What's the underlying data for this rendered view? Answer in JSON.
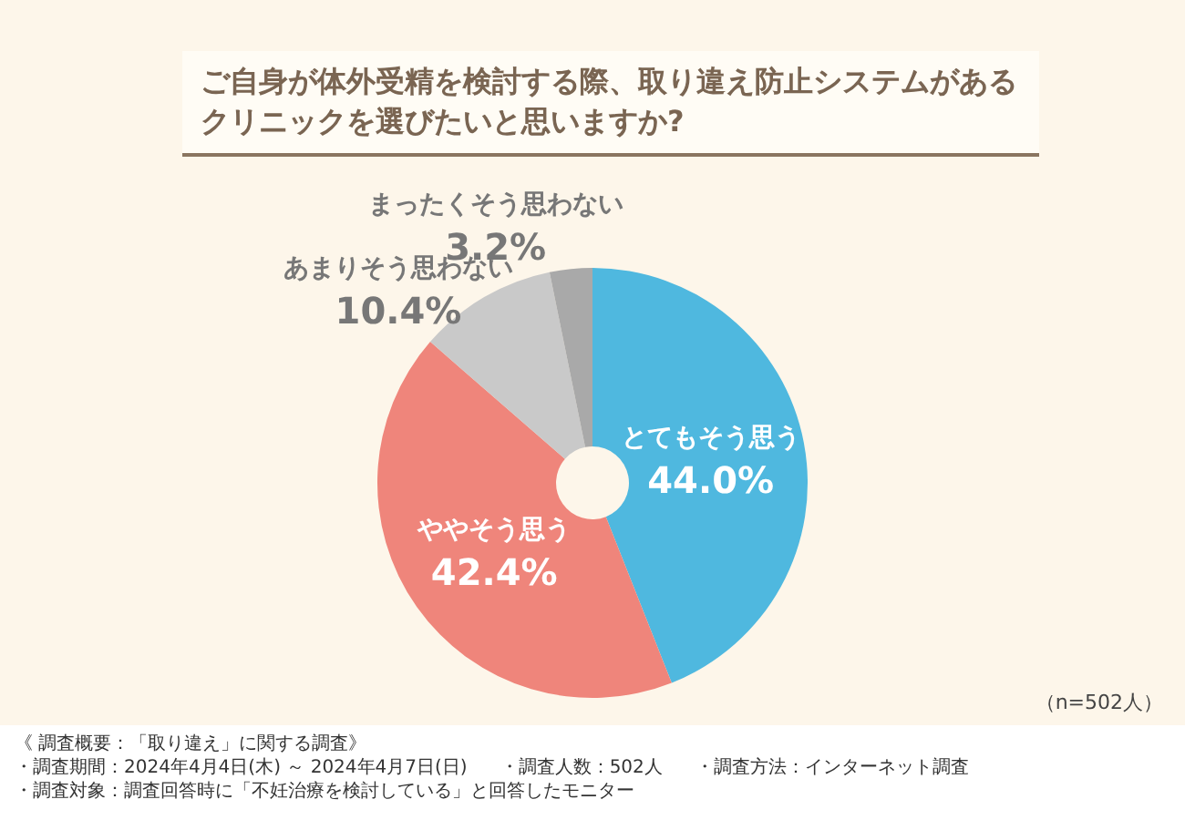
{
  "chart_data": {
    "type": "donut",
    "title": "ご自身が体外受精を検討する際、取り違え防止システムがあるクリニックを選びたいと思いますか?",
    "categories": [
      "とてもそう思う",
      "ややそう思う",
      "あまりそう思わない",
      "まったくそう思わない"
    ],
    "values": [
      44.0,
      42.4,
      10.4,
      3.2
    ],
    "colors": [
      "#4fb8df",
      "#ef857b",
      "#c9c9c9",
      "#a9a9a9"
    ],
    "value_labels": [
      "44.0%",
      "42.4%",
      "10.4%",
      "3.2%"
    ],
    "annotations": [
      "（n=502人）",
      "《 調査概要：「取り違え」に関する調査》",
      "・調査期間：2024年4月4日(木) ～ 2024年4月7日(日)",
      "・調査人数：502人",
      "・調査方法：インターネット調査",
      "・調査対象：調査回答時に「不妊治療を検討している」と回答したモニター"
    ]
  }
}
